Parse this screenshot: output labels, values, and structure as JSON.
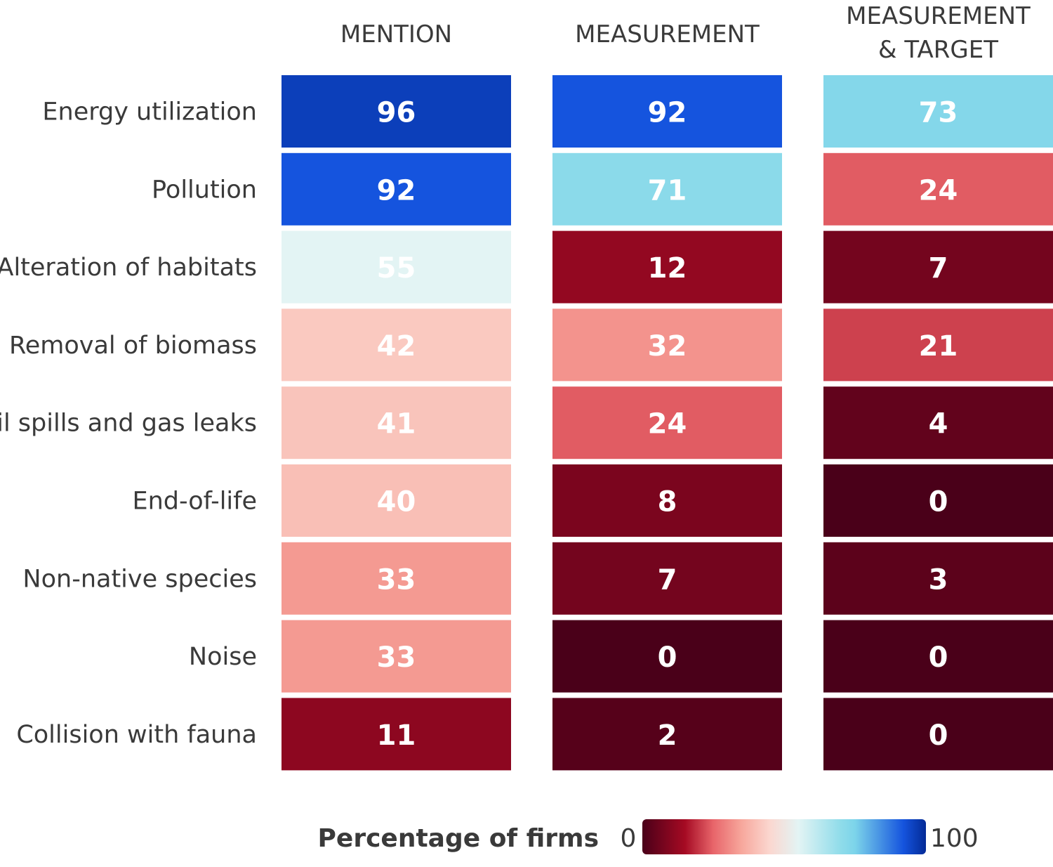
{
  "chart_data": {
    "type": "heatmap",
    "columns": [
      "MENTION",
      "MEASUREMENT",
      "MEASUREMENT\n& TARGET"
    ],
    "rows": [
      "Energy utilization",
      "Pollution",
      "Alteration of habitats",
      "Removal of biomass",
      "Oil spills and gas leaks",
      "End-of-life",
      "Non-native species",
      "Noise",
      "Collision with fauna"
    ],
    "values": [
      [
        96,
        92,
        73
      ],
      [
        92,
        71,
        24
      ],
      [
        55,
        12,
        7
      ],
      [
        42,
        32,
        21
      ],
      [
        41,
        24,
        4
      ],
      [
        40,
        8,
        0
      ],
      [
        33,
        7,
        3
      ],
      [
        33,
        0,
        0
      ],
      [
        11,
        2,
        0
      ]
    ],
    "legend": {
      "title": "Percentage of firms",
      "min": 0,
      "max": 100,
      "min_label": "0",
      "max_label": "100"
    },
    "colorscale": [
      [
        0,
        "#4a0019"
      ],
      [
        15,
        "#a50a23"
      ],
      [
        25,
        "#e8656a"
      ],
      [
        35,
        "#f7a79c"
      ],
      [
        45,
        "#fbd7d0"
      ],
      [
        55,
        "#e3f4f4"
      ],
      [
        70,
        "#8fdcea"
      ],
      [
        75,
        "#7cd4ea"
      ],
      [
        92,
        "#1554de"
      ],
      [
        100,
        "#032a96"
      ]
    ]
  }
}
